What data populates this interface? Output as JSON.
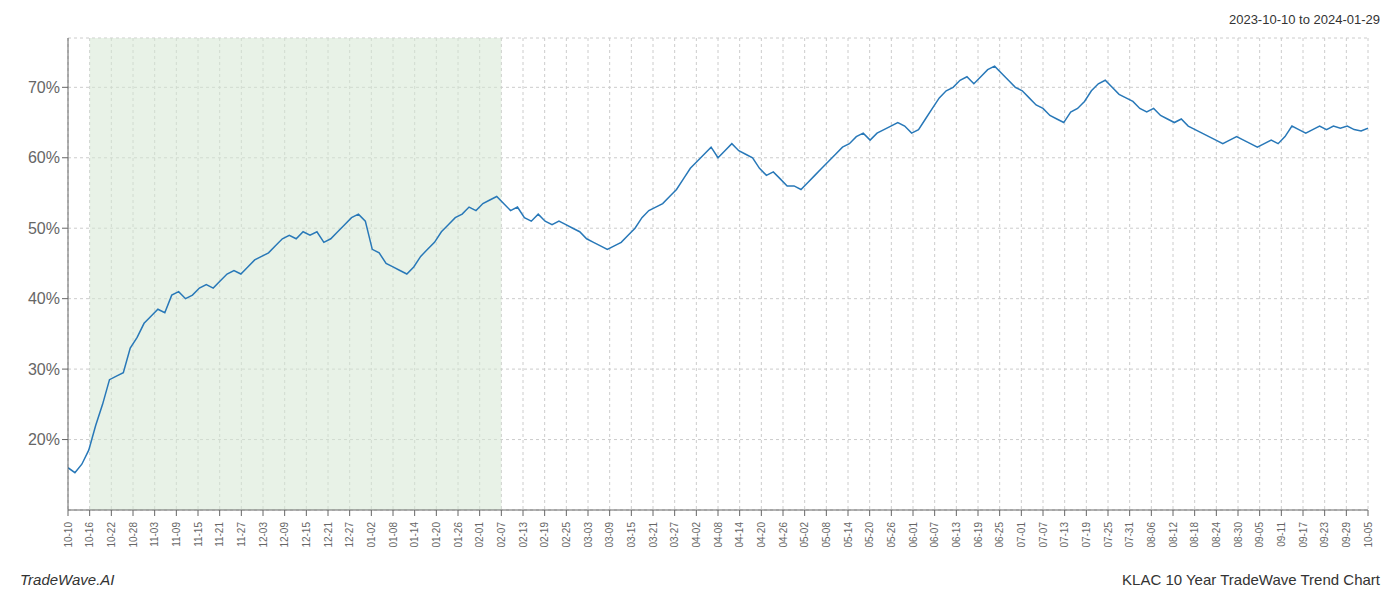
{
  "chart_data": {
    "type": "line",
    "title": "KLAC 10 Year TradeWave Trend Chart",
    "subtitle": "2023-10-10 to 2024-01-29",
    "annotations": [
      "TradeWave.AI"
    ],
    "color": "#2878b8",
    "grid": true,
    "xlim": [
      0,
      60
    ],
    "xticks": [
      {
        "value": 0,
        "label": "10-10"
      },
      {
        "value": 1,
        "label": "10-16"
      },
      {
        "value": 2,
        "label": "10-22"
      },
      {
        "value": 3,
        "label": "10-28"
      },
      {
        "value": 4,
        "label": "11-03"
      },
      {
        "value": 5,
        "label": "11-09"
      },
      {
        "value": 6,
        "label": "11-15"
      },
      {
        "value": 7,
        "label": "11-21"
      },
      {
        "value": 8,
        "label": "11-27"
      },
      {
        "value": 9,
        "label": "12-03"
      },
      {
        "value": 10,
        "label": "12-09"
      },
      {
        "value": 11,
        "label": "12-15"
      },
      {
        "value": 12,
        "label": "12-21"
      },
      {
        "value": 13,
        "label": "12-27"
      },
      {
        "value": 14,
        "label": "01-02"
      },
      {
        "value": 15,
        "label": "01-08"
      },
      {
        "value": 16,
        "label": "01-14"
      },
      {
        "value": 17,
        "label": "01-20"
      },
      {
        "value": 18,
        "label": "01-26"
      },
      {
        "value": 19,
        "label": "02-01"
      },
      {
        "value": 20,
        "label": "02-07"
      },
      {
        "value": 21,
        "label": "02-13"
      },
      {
        "value": 22,
        "label": "02-19"
      },
      {
        "value": 23,
        "label": "02-25"
      },
      {
        "value": 24,
        "label": "03-03"
      },
      {
        "value": 25,
        "label": "03-09"
      },
      {
        "value": 26,
        "label": "03-15"
      },
      {
        "value": 27,
        "label": "03-21"
      },
      {
        "value": 28,
        "label": "03-27"
      },
      {
        "value": 29,
        "label": "04-02"
      },
      {
        "value": 30,
        "label": "04-08"
      },
      {
        "value": 31,
        "label": "04-14"
      },
      {
        "value": 32,
        "label": "04-20"
      },
      {
        "value": 33,
        "label": "04-26"
      },
      {
        "value": 34,
        "label": "05-02"
      },
      {
        "value": 35,
        "label": "05-08"
      },
      {
        "value": 36,
        "label": "05-14"
      },
      {
        "value": 37,
        "label": "05-20"
      },
      {
        "value": 38,
        "label": "05-26"
      },
      {
        "value": 39,
        "label": "06-01"
      },
      {
        "value": 40,
        "label": "06-07"
      },
      {
        "value": 41,
        "label": "06-13"
      },
      {
        "value": 42,
        "label": "06-19"
      },
      {
        "value": 43,
        "label": "06-25"
      },
      {
        "value": 44,
        "label": "07-01"
      },
      {
        "value": 45,
        "label": "07-07"
      },
      {
        "value": 46,
        "label": "07-13"
      },
      {
        "value": 47,
        "label": "07-19"
      },
      {
        "value": 48,
        "label": "07-25"
      },
      {
        "value": 49,
        "label": "07-31"
      },
      {
        "value": 50,
        "label": "08-06"
      },
      {
        "value": 51,
        "label": "08-12"
      },
      {
        "value": 52,
        "label": "08-18"
      },
      {
        "value": 53,
        "label": "08-24"
      },
      {
        "value": 54,
        "label": "08-30"
      },
      {
        "value": 55,
        "label": "09-05"
      },
      {
        "value": 56,
        "label": "09-11"
      },
      {
        "value": 57,
        "label": "09-17"
      },
      {
        "value": 58,
        "label": "09-23"
      },
      {
        "value": 59,
        "label": "09-29"
      },
      {
        "value": 60,
        "label": "10-05"
      }
    ],
    "ylim": [
      10,
      77
    ],
    "yticks": [
      {
        "value": 20,
        "label": "20%"
      },
      {
        "value": 30,
        "label": "30%"
      },
      {
        "value": 40,
        "label": "40%"
      },
      {
        "value": 50,
        "label": "50%"
      },
      {
        "value": 60,
        "label": "60%"
      },
      {
        "value": 70,
        "label": "70%"
      }
    ],
    "shade": {
      "x": [
        1,
        20
      ],
      "color": "#d5e8d4"
    },
    "x": [
      0,
      0.3191,
      0.6383,
      0.9574,
      1.2766,
      1.5957,
      1.9149,
      2.234,
      2.5532,
      2.8723,
      3.1915,
      3.5106,
      3.8298,
      4.1489,
      4.4681,
      4.7872,
      5.1064,
      5.4255,
      5.7447,
      6.0638,
      6.383,
      6.7021,
      7.0213,
      7.3404,
      7.6596,
      7.9787,
      8.2979,
      8.617,
      8.9362,
      9.2553,
      9.5745,
      9.8936,
      10.2128,
      10.5319,
      10.8511,
      11.1702,
      11.4894,
      11.8085,
      12.1277,
      12.4468,
      12.766,
      13.0851,
      13.4043,
      13.7234,
      14.0426,
      14.3617,
      14.6809,
      15,
      15.3191,
      15.6383,
      15.9574,
      16.2766,
      16.5957,
      16.9149,
      17.234,
      17.5532,
      17.8723,
      18.1915,
      18.5106,
      18.8298,
      19.1489,
      19.4681,
      19.7872,
      20.1064,
      20.4255,
      20.7447,
      21.0638,
      21.383,
      21.7021,
      22.0213,
      22.3404,
      22.6596,
      22.9787,
      23.2979,
      23.617,
      23.9362,
      24.2553,
      24.5745,
      24.8936,
      25.2128,
      25.5319,
      25.8511,
      26.1702,
      26.4894,
      26.8085,
      27.1277,
      27.4468,
      27.766,
      28.0851,
      28.4043,
      28.7234,
      29.0426,
      29.3617,
      29.6809,
      30,
      30.3191,
      30.6383,
      30.9574,
      31.2766,
      31.5957,
      31.9149,
      32.234,
      32.5532,
      32.8723,
      33.1915,
      33.5106,
      33.8298,
      34.1489,
      34.4681,
      34.7872,
      35.1064,
      35.4255,
      35.7447,
      36.0638,
      36.383,
      36.7021,
      37.0213,
      37.3404,
      37.6596,
      37.9787,
      38.2979,
      38.617,
      38.9362,
      39.2553,
      39.5745,
      39.8936,
      40.2128,
      40.5319,
      40.8511,
      41.1702,
      41.4894,
      41.8085,
      42.1277,
      42.4468,
      42.766,
      43.0851,
      43.4043,
      43.7234,
      44.0426,
      44.3617,
      44.6809,
      45,
      45.3191,
      45.6383,
      45.9574,
      46.2766,
      46.5957,
      46.9149,
      47.234,
      47.5532,
      47.8723,
      48.1915,
      48.5106,
      48.8298,
      49.1489,
      49.4681,
      49.7872,
      50.1064,
      50.4255,
      50.7447,
      51.0638,
      51.383,
      51.7021,
      52.0213,
      52.3404,
      52.6596,
      52.9787,
      53.2979,
      53.617,
      53.9362,
      54.2553,
      54.5745,
      54.8936,
      55.2128,
      55.5319,
      55.8511,
      56.1702,
      56.4894,
      56.8085,
      57.1277,
      57.4468,
      57.766,
      58.0851,
      58.4043,
      58.7234,
      59.0426,
      59.3617,
      59.6809,
      60
    ],
    "values": [
      16.0,
      15.3,
      16.5,
      18.5,
      22.0,
      25.0,
      28.5,
      29.0,
      29.5,
      33.0,
      34.5,
      36.5,
      37.5,
      38.5,
      38.0,
      40.5,
      41.0,
      40.0,
      40.5,
      41.5,
      42.0,
      41.5,
      42.5,
      43.5,
      44.0,
      43.5,
      44.5,
      45.5,
      46.0,
      46.5,
      47.5,
      48.5,
      49.0,
      48.5,
      49.5,
      49.0,
      49.5,
      48.0,
      48.5,
      49.5,
      50.5,
      51.5,
      52.0,
      51.0,
      47.0,
      46.5,
      45.0,
      44.5,
      44.0,
      43.5,
      44.5,
      46.0,
      47.0,
      48.0,
      49.5,
      50.5,
      51.5,
      52.0,
      53.0,
      52.5,
      53.5,
      54.0,
      54.5,
      53.5,
      52.5,
      53.0,
      51.5,
      51.0,
      52.0,
      51.0,
      50.5,
      51.0,
      50.5,
      50.0,
      49.5,
      48.5,
      48.0,
      47.5,
      47.0,
      47.5,
      48.0,
      49.0,
      50.0,
      51.5,
      52.5,
      53.0,
      53.5,
      54.5,
      55.5,
      57.0,
      58.5,
      59.5,
      60.5,
      61.5,
      60.0,
      61.0,
      62.0,
      61.0,
      60.5,
      60.0,
      58.5,
      57.5,
      58.0,
      57.0,
      56.0,
      56.0,
      55.5,
      56.5,
      57.5,
      58.5,
      59.5,
      60.5,
      61.5,
      62.0,
      63.0,
      63.5,
      62.5,
      63.5,
      64.0,
      64.5,
      65.0,
      64.5,
      63.5,
      64.0,
      65.5,
      67.0,
      68.5,
      69.5,
      70.0,
      71.0,
      71.5,
      70.5,
      71.5,
      72.5,
      73.0,
      72.0,
      71.0,
      70.0,
      69.5,
      68.5,
      67.5,
      67.0,
      66.0,
      65.5,
      65.0,
      66.5,
      67.0,
      68.0,
      69.5,
      70.5,
      71.0,
      70.0,
      69.0,
      68.5,
      68.0,
      67.0,
      66.5,
      67.0,
      66.0,
      65.5,
      65.0,
      65.5,
      64.5,
      64.0,
      63.5,
      63.0,
      62.5,
      62.0,
      62.5,
      63.0,
      62.5,
      62.0,
      61.5,
      62.0,
      62.5,
      62.0,
      63.0,
      64.5,
      64.0,
      63.5,
      64.0,
      64.5,
      64.0,
      64.5,
      64.2,
      64.5,
      64.0,
      63.8,
      64.2
    ]
  }
}
